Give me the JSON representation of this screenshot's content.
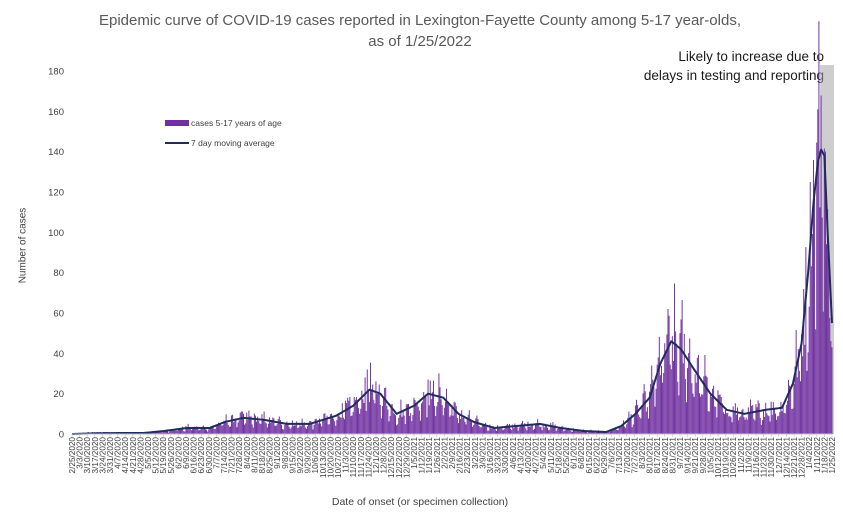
{
  "chart_data": {
    "type": "bar",
    "title": "Epidemic curve of COVID-19 cases reported in Lexington-Fayette County among 5-17 year-olds, as of 1/25/2022",
    "xlabel": "Date of onset (or specimen collection)",
    "ylabel": "Number of cases",
    "ylim": [
      0,
      180
    ],
    "yticks": [
      0,
      20,
      40,
      60,
      80,
      100,
      120,
      140,
      160,
      180
    ],
    "x_start": "2/25/2020",
    "x_end": "1/25/2022",
    "tick_step_days": 7,
    "grid": false,
    "legend_position": "upper-left",
    "annotation": "Likely to increase due to delays in testing and reporting",
    "shaded_region": {
      "start": "1/14/2022",
      "end": "1/25/2022"
    },
    "colors": {
      "bars": "#7030a0",
      "moving_average": "#1f2d5c",
      "shade": "#a6a6a6"
    },
    "series": [
      {
        "name": "cases 5-17 years of age",
        "kind": "bar"
      },
      {
        "name": "7 day moving average",
        "kind": "line"
      }
    ],
    "profile_note_free": true,
    "moving_average_anchors": [
      [
        "2/25/2020",
        0
      ],
      [
        "3/15/2020",
        0.3
      ],
      [
        "4/10/2020",
        0.5
      ],
      [
        "5/1/2020",
        0.5
      ],
      [
        "5/20/2020",
        1.5
      ],
      [
        "6/10/2020",
        3
      ],
      [
        "7/1/2020",
        3
      ],
      [
        "7/15/2020",
        6
      ],
      [
        "8/1/2020",
        8
      ],
      [
        "8/20/2020",
        7
      ],
      [
        "9/10/2020",
        5
      ],
      [
        "10/1/2020",
        5
      ],
      [
        "10/25/2020",
        9
      ],
      [
        "11/10/2020",
        14
      ],
      [
        "11/25/2020",
        22
      ],
      [
        "12/5/2020",
        20
      ],
      [
        "12/20/2020",
        10
      ],
      [
        "1/5/2021",
        14
      ],
      [
        "1/18/2021",
        20
      ],
      [
        "2/1/2021",
        18
      ],
      [
        "2/15/2021",
        10
      ],
      [
        "3/1/2021",
        6
      ],
      [
        "3/20/2021",
        3
      ],
      [
        "4/10/2021",
        4
      ],
      [
        "5/1/2021",
        5
      ],
      [
        "5/20/2021",
        3
      ],
      [
        "6/10/2021",
        1.5
      ],
      [
        "7/1/2021",
        1
      ],
      [
        "7/15/2021",
        4
      ],
      [
        "7/28/2021",
        10
      ],
      [
        "8/10/2021",
        18
      ],
      [
        "8/20/2021",
        35
      ],
      [
        "8/30/2021",
        46
      ],
      [
        "9/8/2021",
        42
      ],
      [
        "9/20/2021",
        32
      ],
      [
        "10/5/2021",
        20
      ],
      [
        "10/20/2021",
        12
      ],
      [
        "11/5/2021",
        10
      ],
      [
        "11/25/2021",
        12
      ],
      [
        "12/10/2021",
        13
      ],
      [
        "12/20/2021",
        25
      ],
      [
        "12/28/2021",
        45
      ],
      [
        "1/3/2022",
        80
      ],
      [
        "1/8/2022",
        115
      ],
      [
        "1/12/2022",
        135
      ],
      [
        "1/15/2022",
        141
      ],
      [
        "1/18/2022",
        138
      ],
      [
        "1/21/2022",
        100
      ],
      [
        "1/25/2022",
        55
      ]
    ],
    "bar_peaks": [
      {
        "date": "8/27/2021",
        "value": 62
      },
      {
        "date": "1/12/2022",
        "value": 161
      },
      {
        "date": "1/9/2022",
        "value": 117
      },
      {
        "date": "11/23/2020",
        "value": 32
      },
      {
        "date": "1/18/2021",
        "value": 27
      }
    ]
  },
  "legend": {
    "bars_label": "cases 5-17 years of age",
    "line_label": "7 day moving average"
  },
  "xticks": [
    "2/25/2020",
    "3/3/2020",
    "3/10/2020",
    "3/17/2020",
    "3/24/2020",
    "3/31/2020",
    "4/7/2020",
    "4/14/2020",
    "4/21/2020",
    "4/28/2020",
    "5/5/2020",
    "5/12/2020",
    "5/19/2020",
    "5/26/2020",
    "6/2/2020",
    "6/9/2020",
    "6/16/2020",
    "6/23/2020",
    "6/30/2020",
    "7/7/2020",
    "7/14/2020",
    "7/21/2020",
    "7/28/2020",
    "8/4/2020",
    "8/11/2020",
    "8/18/2020",
    "8/25/2020",
    "9/1/2020",
    "9/8/2020",
    "9/15/2020",
    "9/22/2020",
    "9/29/2020",
    "10/6/2020",
    "10/13/2020",
    "10/20/2020",
    "10/27/2020",
    "11/3/2020",
    "11/10/2020",
    "11/17/2020",
    "11/24/2020",
    "12/1/2020",
    "12/8/2020",
    "12/15/2020",
    "12/22/2020",
    "12/29/2020",
    "1/5/2021",
    "1/12/2021",
    "1/19/2021",
    "1/26/2021",
    "2/2/2021",
    "2/9/2021",
    "2/16/2021",
    "2/23/2021",
    "3/2/2021",
    "3/9/2021",
    "3/16/2021",
    "3/23/2021",
    "3/30/2021",
    "4/6/2021",
    "4/13/2021",
    "4/20/2021",
    "4/27/2021",
    "5/4/2021",
    "5/11/2021",
    "5/18/2021",
    "5/25/2021",
    "6/1/2021",
    "6/8/2021",
    "6/15/2021",
    "6/22/2021",
    "6/29/2021",
    "7/6/2021",
    "7/13/2021",
    "7/20/2021",
    "7/27/2021",
    "8/3/2021",
    "8/10/2021",
    "8/17/2021",
    "8/24/2021",
    "8/31/2021",
    "9/7/2021",
    "9/14/2021",
    "9/21/2021",
    "9/28/2021",
    "10/5/2021",
    "10/12/2021",
    "10/19/2021",
    "10/26/2021",
    "11/2/2021",
    "11/9/2021",
    "11/16/2021",
    "11/23/2021",
    "11/30/2021",
    "12/7/2021",
    "12/14/2021",
    "12/21/2021",
    "12/28/2021",
    "1/4/2022",
    "1/11/2022",
    "1/18/2022",
    "1/25/2022"
  ]
}
